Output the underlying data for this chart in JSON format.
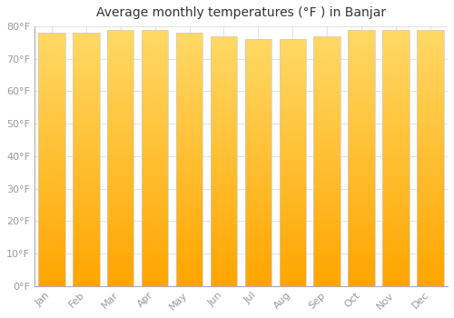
{
  "title": "Average monthly temperatures (°F ) in Banjar",
  "months": [
    "Jan",
    "Feb",
    "Mar",
    "Apr",
    "May",
    "Jun",
    "Jul",
    "Aug",
    "Sep",
    "Oct",
    "Nov",
    "Dec"
  ],
  "values": [
    78,
    78,
    79,
    79,
    78,
    77,
    76,
    76,
    77,
    79,
    79,
    79
  ],
  "bar_color_bottom": "#FFA500",
  "bar_color_top": "#FFD966",
  "background_color": "#FFFFFF",
  "plot_bg_color": "#FFFFFF",
  "ylim": [
    0,
    80
  ],
  "ytick_step": 10,
  "grid_color": "#E0E0E0",
  "title_fontsize": 10,
  "tick_fontsize": 8,
  "bar_edge_color": "#CCCCCC",
  "tick_color": "#999999",
  "title_color": "#333333"
}
